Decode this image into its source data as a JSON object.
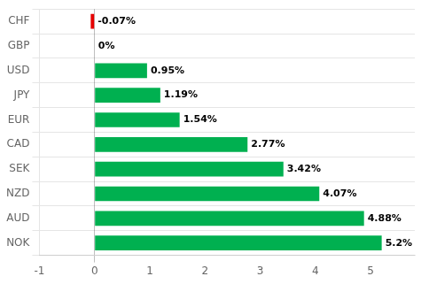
{
  "chart_data": {
    "type": "bar",
    "orientation": "horizontal",
    "categories": [
      "CHF",
      "GBP",
      "USD",
      "JPY",
      "EUR",
      "CAD",
      "SEK",
      "NZD",
      "AUD",
      "NOK"
    ],
    "values": [
      -0.07,
      0.0,
      0.95,
      1.19,
      1.54,
      2.77,
      3.42,
      4.07,
      4.88,
      5.2
    ],
    "value_labels": [
      "-0.07%",
      "0%",
      "0.95%",
      "1.19%",
      "1.54%",
      "2.77%",
      "3.42%",
      "4.07%",
      "4.88%",
      "5.2%"
    ],
    "colors": [
      "#e60000",
      "#00b050",
      "#00b050",
      "#00b050",
      "#00b050",
      "#00b050",
      "#00b050",
      "#00b050",
      "#00b050",
      "#00b050"
    ],
    "xlim": [
      -1.0,
      5.8
    ],
    "xticks": [
      -1,
      0,
      1,
      2,
      3,
      4,
      5
    ],
    "grid": "y",
    "data_labels": true
  }
}
